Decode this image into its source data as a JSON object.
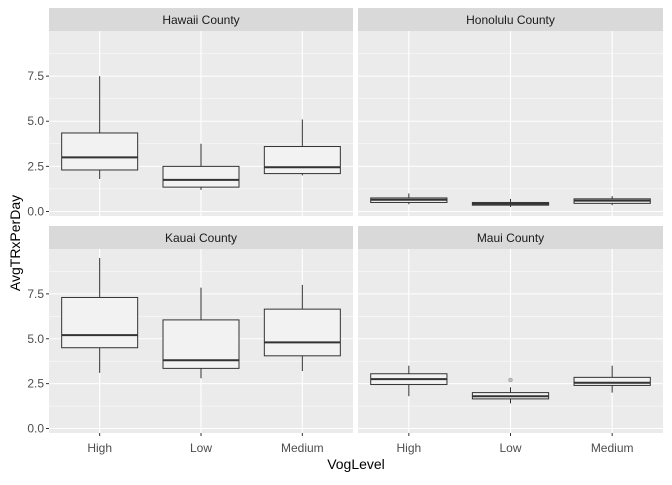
{
  "chart_data": {
    "type": "box",
    "xlabel": "VogLevel",
    "ylabel": "AvgTRxPerDay",
    "categories": [
      "High",
      "Low",
      "Medium"
    ],
    "y_ticks": [
      0.0,
      2.5,
      5.0,
      7.5
    ],
    "y_tick_labels": [
      "0.0",
      "2.5",
      "5.0",
      "7.5"
    ],
    "ylim": [
      -0.25,
      10.0
    ],
    "grid": true,
    "colors": {
      "panel_bg": "#ebebeb",
      "strip_bg": "#d9d9d9",
      "grid_major": "#ffffff",
      "box_fill": "#f2f2f2",
      "box_line": "#333333",
      "outlier": "#999999"
    },
    "panels": [
      {
        "name": "Hawaii County",
        "boxes": [
          {
            "category": "High",
            "min": 1.8,
            "q1": 2.3,
            "median": 3.0,
            "q3": 4.35,
            "max": 7.5,
            "outliers": []
          },
          {
            "category": "Low",
            "min": 1.2,
            "q1": 1.35,
            "median": 1.75,
            "q3": 2.5,
            "max": 3.75,
            "outliers": []
          },
          {
            "category": "Medium",
            "min": 2.0,
            "q1": 2.1,
            "median": 2.45,
            "q3": 3.6,
            "max": 5.1,
            "outliers": []
          }
        ]
      },
      {
        "name": "Honolulu County",
        "boxes": [
          {
            "category": "High",
            "min": 0.4,
            "q1": 0.5,
            "median": 0.65,
            "q3": 0.75,
            "max": 1.0,
            "outliers": []
          },
          {
            "category": "Low",
            "min": 0.25,
            "q1": 0.35,
            "median": 0.42,
            "q3": 0.5,
            "max": 0.7,
            "outliers": []
          },
          {
            "category": "Medium",
            "min": 0.35,
            "q1": 0.45,
            "median": 0.6,
            "q3": 0.7,
            "max": 0.85,
            "outliers": []
          }
        ]
      },
      {
        "name": "Kauai County",
        "boxes": [
          {
            "category": "High",
            "min": 3.1,
            "q1": 4.5,
            "median": 5.2,
            "q3": 7.3,
            "max": 9.5,
            "outliers": []
          },
          {
            "category": "Low",
            "min": 2.8,
            "q1": 3.35,
            "median": 3.8,
            "q3": 6.05,
            "max": 7.85,
            "outliers": []
          },
          {
            "category": "Medium",
            "min": 3.2,
            "q1": 4.05,
            "median": 4.8,
            "q3": 6.65,
            "max": 8.0,
            "outliers": []
          }
        ]
      },
      {
        "name": "Maui County",
        "boxes": [
          {
            "category": "High",
            "min": 1.8,
            "q1": 2.45,
            "median": 2.75,
            "q3": 3.05,
            "max": 3.5,
            "outliers": []
          },
          {
            "category": "Low",
            "min": 1.4,
            "q1": 1.65,
            "median": 1.8,
            "q3": 2.0,
            "max": 2.3,
            "outliers": [
              2.7
            ]
          },
          {
            "category": "Medium",
            "min": 2.0,
            "q1": 2.4,
            "median": 2.55,
            "q3": 2.85,
            "max": 3.5,
            "outliers": []
          }
        ]
      }
    ]
  }
}
